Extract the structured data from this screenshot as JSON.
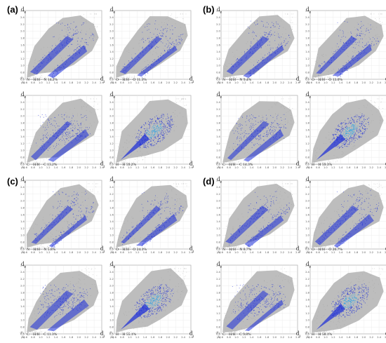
{
  "figure": {
    "panels": [
      {
        "label": "(a)",
        "plots": [
          {
            "caption": "N···H/H···N 14.2%"
          },
          {
            "caption": "O···H/H···O 11.3%"
          },
          {
            "caption": "C···H/H···C 13.2%"
          },
          {
            "caption": "H···H 59.2%"
          }
        ]
      },
      {
        "label": "(b)",
        "plots": [
          {
            "caption": "N···H/H···N 9.4%"
          },
          {
            "caption": "O···H/H···O 13.0%"
          },
          {
            "caption": "C···H/H···C 14.3%"
          },
          {
            "caption": "H···H 59.3%"
          }
        ]
      },
      {
        "label": "(c)",
        "plots": [
          {
            "caption": "N···H/H···N 5.8%"
          },
          {
            "caption": "O···H/H···O 24.3%"
          },
          {
            "caption": "C···H/H···C 11.3%"
          },
          {
            "caption": "H···H 55.1%"
          }
        ]
      },
      {
        "label": "(d)",
        "plots": [
          {
            "caption": "N···H/H···N 8.7%"
          },
          {
            "caption": "O···H/H···O 20.7%"
          },
          {
            "caption": "C···H/H···C 9.8%"
          },
          {
            "caption": "H···H 58.1%"
          }
        ]
      }
    ],
    "axes": {
      "de_label": "de",
      "di_label": "di",
      "x_ticks": [
        "0.6",
        "0.8",
        "1.0",
        "1.2",
        "1.4",
        "1.6",
        "1.8",
        "2.0",
        "2.2",
        "2.4",
        "2.6"
      ],
      "y_ticks": [
        "2.6",
        "2.4",
        "2.2",
        "2.0",
        "1.8",
        "1.6",
        "1.4",
        "1.2",
        "1.0",
        "0.8",
        "0.6"
      ],
      "x_unit": "(Å)",
      "y_unit": "(Å)"
    },
    "colors": {
      "background_fill": "#b9b9b9",
      "grid": "#e0e0e0",
      "frame": "#888888",
      "highlight": "#1a2bd8",
      "highlight_core": "#2ea3e6",
      "caption": "#222222"
    }
  }
}
